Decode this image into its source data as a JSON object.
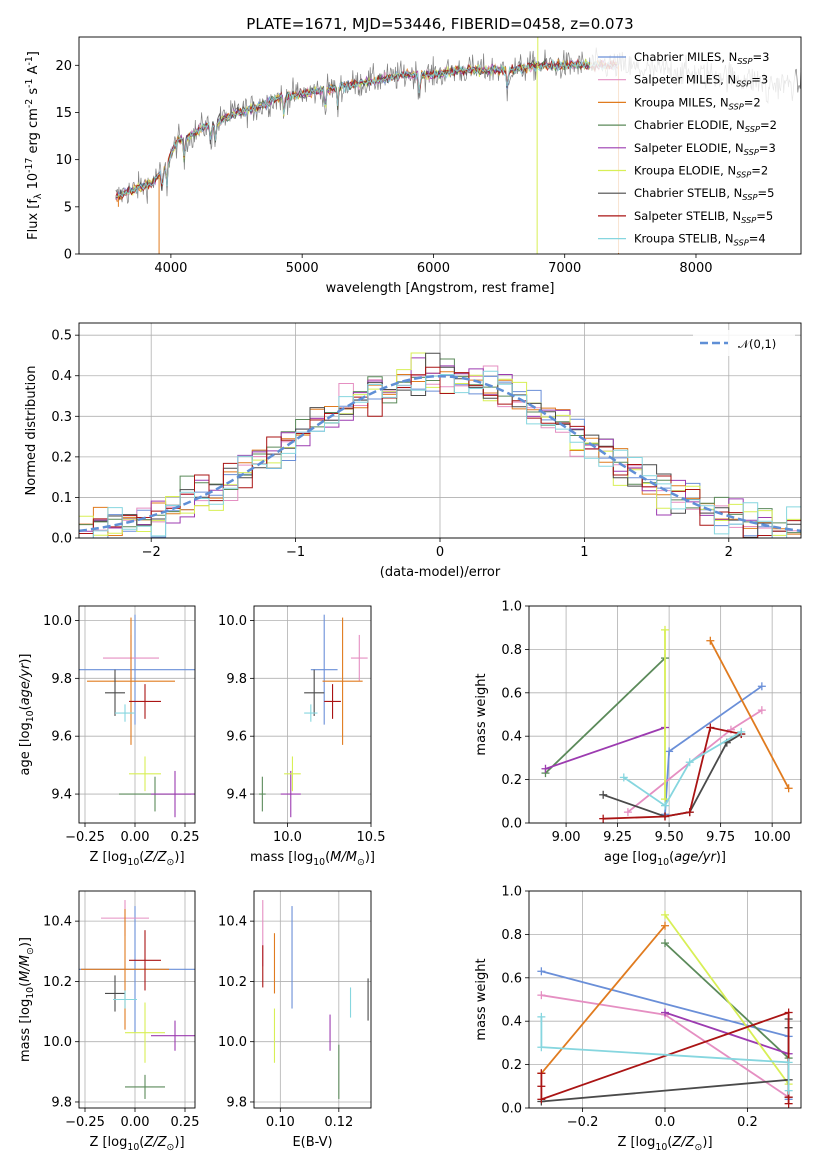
{
  "title": "PLATE=1671, MJD=53446, FIBERID=0458, z=0.073",
  "colors": {
    "Chabrier MILES": "#6a8fd8",
    "Salpeter MILES": "#e58fc2",
    "Kroupa MILES": "#e07b1f",
    "Chabrier ELODIE": "#5b8a5a",
    "Salpeter ELODIE": "#9c3bb0",
    "Kroupa ELODIE": "#d8ef56",
    "Chabrier STELIB": "#4a4a4a",
    "Salpeter STELIB": "#aa1414",
    "Kroupa STELIB": "#86d6df",
    "normal": "#5f8fd6",
    "data": "#808080"
  },
  "chart_data": [
    {
      "id": "spectrum",
      "type": "line",
      "xlabel": "wavelength [Angstrom, rest frame]",
      "ylabel": "Flux [f$_\\lambda 10^{-17}$ erg cm$^{-2}$ s$^{-1}$ A$^{-1}$]",
      "xlim": [
        3300,
        8800
      ],
      "ylim": [
        0,
        23
      ],
      "xticks": [
        4000,
        5000,
        6000,
        7000,
        8000
      ],
      "yticks": [
        0,
        5,
        10,
        15,
        20
      ],
      "legend_placement": "upper right",
      "continuum": {
        "x": [
          3580,
          3650,
          3750,
          3850,
          3950,
          4050,
          4150,
          4250,
          4350,
          4500,
          4650,
          4800,
          5000,
          5200,
          5400,
          5600,
          5800,
          6000,
          6200,
          6400,
          6600,
          6800,
          7000,
          7200,
          7400,
          7600,
          7800,
          8000,
          8200,
          8400,
          8600,
          8800
        ],
        "y": [
          6.0,
          6.5,
          7.0,
          7.5,
          9.0,
          12.0,
          12.5,
          13.5,
          14.0,
          15.0,
          15.5,
          16.5,
          17.0,
          17.5,
          18.0,
          18.5,
          19.0,
          19.0,
          19.5,
          19.5,
          19.5,
          20.0,
          20.0,
          20.0,
          20.0,
          19.5,
          19.5,
          19.0,
          19.0,
          18.5,
          18.0,
          18.0
        ]
      },
      "series": [
        {
          "name": "Chabrier MILES, N$_{SSP}$=3",
          "label_model": "Chabrier MILES",
          "label_n": "3"
        },
        {
          "name": "Salpeter MILES, N$_{SSP}$=3",
          "label_model": "Salpeter MILES",
          "label_n": "3"
        },
        {
          "name": "Kroupa MILES, N$_{SSP}$=2",
          "label_model": "Kroupa MILES",
          "label_n": "2"
        },
        {
          "name": "Chabrier ELODIE, N$_{SSP}$=2",
          "label_model": "Chabrier ELODIE",
          "label_n": "2"
        },
        {
          "name": "Salpeter ELODIE, N$_{SSP}$=3",
          "label_model": "Salpeter ELODIE",
          "label_n": "3"
        },
        {
          "name": "Kroupa ELODIE, N$_{SSP}$=2",
          "label_model": "Kroupa ELODIE",
          "label_n": "2"
        },
        {
          "name": "Chabrier STELIB, N$_{SSP}$=5",
          "label_model": "Chabrier STELIB",
          "label_n": "5"
        },
        {
          "name": "Salpeter STELIB, N$_{SSP}$=5",
          "label_model": "Salpeter STELIB",
          "label_n": "5"
        },
        {
          "name": "Kroupa STELIB, N$_{SSP}$=4",
          "label_model": "Kroupa STELIB",
          "label_n": "4"
        }
      ]
    },
    {
      "id": "residuals",
      "type": "line",
      "xlabel": "(data-model)/error",
      "ylabel": "Normed distribution",
      "xlim": [
        -2.5,
        2.5
      ],
      "ylim": [
        0,
        0.53
      ],
      "xticks": [
        -2,
        -1,
        0,
        1,
        2
      ],
      "yticks": [
        0.0,
        0.1,
        0.2,
        0.3,
        0.4,
        0.5
      ],
      "grid": true,
      "legend": {
        "label": "$\\mathcal{N}(0,1)$",
        "placement": "upper right"
      },
      "series": [
        {
          "name": "N(0,1)",
          "mean": 0,
          "sigma": 1,
          "style": "dashed"
        }
      ]
    },
    {
      "id": "age_vs_Z",
      "type": "scatter",
      "xlabel": "Z [log$_{10}$($Z/Z_\\odot$)]",
      "ylabel": "age  [log$_{10}$($age/yr$)]",
      "xlim": [
        -0.28,
        0.3
      ],
      "ylim": [
        9.3,
        10.05
      ],
      "xticks": [
        -0.25,
        0.0,
        0.25
      ],
      "yticks": [
        9.4,
        9.6,
        9.8,
        10.0
      ],
      "grid": true,
      "points": [
        {
          "model": "Chabrier MILES",
          "x": 0.0,
          "xerr": 0.3,
          "y": 9.83,
          "yerr": 0.19
        },
        {
          "model": "Salpeter MILES",
          "x": -0.02,
          "xerr": 0.14,
          "y": 9.87,
          "yerr": 0.08
        },
        {
          "model": "Kroupa MILES",
          "x": -0.02,
          "xerr": 0.22,
          "y": 9.79,
          "yerr": 0.22
        },
        {
          "model": "Chabrier ELODIE",
          "x": 0.1,
          "xerr": 0.18,
          "y": 9.4,
          "yerr": 0.06
        },
        {
          "model": "Salpeter ELODIE",
          "x": 0.2,
          "xerr": 0.12,
          "y": 9.4,
          "yerr": 0.08
        },
        {
          "model": "Kroupa ELODIE",
          "x": 0.05,
          "xerr": 0.08,
          "y": 9.47,
          "yerr": 0.06
        },
        {
          "model": "Chabrier STELIB",
          "x": -0.1,
          "xerr": 0.05,
          "y": 9.75,
          "yerr": 0.08
        },
        {
          "model": "Salpeter STELIB",
          "x": 0.05,
          "xerr": 0.08,
          "y": 9.72,
          "yerr": 0.06
        },
        {
          "model": "Kroupa STELIB",
          "x": -0.05,
          "xerr": 0.05,
          "y": 9.68,
          "yerr": 0.03
        }
      ]
    },
    {
      "id": "age_vs_mass",
      "type": "scatter",
      "xlabel": "mass [log$_{10}$($M/M_\\odot$)]",
      "xlim": [
        9.8,
        10.5
      ],
      "ylim": [
        9.3,
        10.05
      ],
      "xticks": [
        10.0,
        10.5
      ],
      "yticks": [
        9.4,
        9.6,
        9.8,
        10.0
      ],
      "grid": true,
      "points": [
        {
          "model": "Chabrier MILES",
          "x": 10.22,
          "xerr": 0.08,
          "y": 9.83,
          "yerr": 0.19
        },
        {
          "model": "Salpeter MILES",
          "x": 10.43,
          "xerr": 0.05,
          "y": 9.87,
          "yerr": 0.08
        },
        {
          "model": "Kroupa MILES",
          "x": 10.33,
          "xerr": 0.12,
          "y": 9.79,
          "yerr": 0.22
        },
        {
          "model": "Chabrier ELODIE",
          "x": 9.85,
          "xerr": 0.02,
          "y": 9.4,
          "yerr": 0.06
        },
        {
          "model": "Salpeter ELODIE",
          "x": 10.02,
          "xerr": 0.06,
          "y": 9.4,
          "yerr": 0.08
        },
        {
          "model": "Kroupa ELODIE",
          "x": 10.03,
          "xerr": 0.05,
          "y": 9.47,
          "yerr": 0.06
        },
        {
          "model": "Chabrier STELIB",
          "x": 10.16,
          "xerr": 0.06,
          "y": 9.75,
          "yerr": 0.08
        },
        {
          "model": "Salpeter STELIB",
          "x": 10.27,
          "xerr": 0.05,
          "y": 9.72,
          "yerr": 0.06
        },
        {
          "model": "Kroupa STELIB",
          "x": 10.14,
          "xerr": 0.04,
          "y": 9.68,
          "yerr": 0.03
        }
      ]
    },
    {
      "id": "weight_vs_age",
      "type": "line",
      "xlabel": "age  [log$_{10}$($age/yr$)]",
      "ylabel": "mass weight",
      "xlim": [
        8.82,
        10.14
      ],
      "ylim": [
        0,
        1.0
      ],
      "xticks": [
        9.0,
        9.25,
        9.5,
        9.75,
        10.0
      ],
      "yticks": [
        0.0,
        0.2,
        0.4,
        0.6,
        0.8,
        1.0
      ],
      "grid": true,
      "series": [
        {
          "model": "Chabrier MILES",
          "x": [
            9.48,
            9.5,
            9.95
          ],
          "y": [
            0.04,
            0.33,
            0.63
          ]
        },
        {
          "model": "Salpeter MILES",
          "x": [
            9.3,
            9.8,
            9.95
          ],
          "y": [
            0.05,
            0.43,
            0.52
          ]
        },
        {
          "model": "Kroupa MILES",
          "x": [
            9.7,
            10.08
          ],
          "y": [
            0.84,
            0.16
          ]
        },
        {
          "model": "Chabrier ELODIE",
          "x": [
            8.9,
            9.48
          ],
          "y": [
            0.23,
            0.76
          ]
        },
        {
          "model": "Salpeter ELODIE",
          "x": [
            8.9,
            9.48
          ],
          "y": [
            0.25,
            0.44
          ]
        },
        {
          "model": "Kroupa ELODIE",
          "x": [
            9.48,
            9.48
          ],
          "y": [
            0.11,
            0.89
          ]
        },
        {
          "model": "Chabrier STELIB",
          "x": [
            9.18,
            9.48,
            9.6,
            9.78,
            9.85
          ],
          "y": [
            0.13,
            0.03,
            0.05,
            0.37,
            0.41
          ]
        },
        {
          "model": "Salpeter STELIB",
          "x": [
            9.18,
            9.48,
            9.6,
            9.7,
            9.85
          ],
          "y": [
            0.02,
            0.03,
            0.05,
            0.44,
            0.41
          ]
        },
        {
          "model": "Kroupa STELIB",
          "x": [
            9.28,
            9.48,
            9.6,
            9.85
          ],
          "y": [
            0.21,
            0.08,
            0.28,
            0.42
          ]
        }
      ]
    },
    {
      "id": "mass_vs_Z",
      "type": "scatter",
      "xlabel": "Z [log$_{10}$($Z/Z_\\odot$)]",
      "ylabel": "mass [log$_{10}$($M/M_\\odot$)]",
      "xlim": [
        -0.28,
        0.3
      ],
      "ylim": [
        9.78,
        10.5
      ],
      "xticks": [
        -0.25,
        0.0,
        0.25
      ],
      "yticks": [
        9.8,
        10.0,
        10.2,
        10.4
      ],
      "grid": true,
      "points": [
        {
          "model": "Chabrier MILES",
          "x": 0.0,
          "xerr": 0.3,
          "y": 10.24,
          "yerr": 0.21
        },
        {
          "model": "Salpeter MILES",
          "x": -0.05,
          "xerr": 0.12,
          "y": 10.41,
          "yerr": 0.06
        },
        {
          "model": "Kroupa MILES",
          "x": -0.05,
          "xerr": 0.22,
          "y": 10.24,
          "yerr": 0.2
        },
        {
          "model": "Chabrier ELODIE",
          "x": 0.05,
          "xerr": 0.1,
          "y": 9.85,
          "yerr": 0.04
        },
        {
          "model": "Salpeter ELODIE",
          "x": 0.2,
          "xerr": 0.12,
          "y": 10.02,
          "yerr": 0.05
        },
        {
          "model": "Kroupa ELODIE",
          "x": 0.05,
          "xerr": 0.1,
          "y": 10.03,
          "yerr": 0.1
        },
        {
          "model": "Chabrier STELIB",
          "x": -0.1,
          "xerr": 0.05,
          "y": 10.16,
          "yerr": 0.06
        },
        {
          "model": "Salpeter STELIB",
          "x": 0.05,
          "xerr": 0.08,
          "y": 10.27,
          "yerr": 0.1
        },
        {
          "model": "Kroupa STELIB",
          "x": -0.05,
          "xerr": 0.06,
          "y": 10.14,
          "yerr": 0.03
        }
      ]
    },
    {
      "id": "mass_vs_ebv",
      "type": "scatter",
      "xlabel": "E(B-V)",
      "xlim": [
        0.091,
        0.131
      ],
      "ylim": [
        9.78,
        10.5
      ],
      "xticks": [
        0.1,
        0.12
      ],
      "yticks": [
        9.8,
        10.0,
        10.2,
        10.4
      ],
      "grid": true,
      "points": [
        {
          "model": "Chabrier MILES",
          "x": 0.104,
          "y": 10.28,
          "yerr": 0.17
        },
        {
          "model": "Salpeter MILES",
          "x": 0.094,
          "y": 10.36,
          "yerr": 0.11
        },
        {
          "model": "Kroupa MILES",
          "x": 0.098,
          "y": 10.26,
          "yerr": 0.1
        },
        {
          "model": "Chabrier ELODIE",
          "x": 0.12,
          "y": 9.9,
          "yerr": 0.09
        },
        {
          "model": "Salpeter ELODIE",
          "x": 0.117,
          "y": 10.03,
          "yerr": 0.06
        },
        {
          "model": "Kroupa ELODIE",
          "x": 0.098,
          "y": 10.02,
          "yerr": 0.09
        },
        {
          "model": "Chabrier STELIB",
          "x": 0.13,
          "y": 10.14,
          "yerr": 0.07
        },
        {
          "model": "Salpeter STELIB",
          "x": 0.094,
          "y": 10.25,
          "yerr": 0.07
        },
        {
          "model": "Kroupa STELIB",
          "x": 0.124,
          "y": 10.13,
          "yerr": 0.05
        }
      ]
    },
    {
      "id": "weight_vs_Z",
      "type": "line",
      "xlabel": "Z [log$_{10}$($Z/Z_\\odot$)]",
      "ylabel": "mass weight",
      "xlim": [
        -0.33,
        0.33
      ],
      "ylim": [
        0,
        1.0
      ],
      "xticks": [
        -0.2,
        0.0,
        0.2
      ],
      "yticks": [
        0.0,
        0.2,
        0.4,
        0.6,
        0.8,
        1.0
      ],
      "grid": true,
      "series": [
        {
          "model": "Chabrier MILES",
          "x": [
            -0.3,
            0.3,
            0.3
          ],
          "y": [
            0.63,
            0.33,
            0.04
          ]
        },
        {
          "model": "Salpeter MILES",
          "x": [
            -0.3,
            0.0,
            0.3
          ],
          "y": [
            0.52,
            0.43,
            0.05
          ]
        },
        {
          "model": "Kroupa MILES",
          "x": [
            -0.3,
            0.0
          ],
          "y": [
            0.16,
            0.84
          ]
        },
        {
          "model": "Chabrier ELODIE",
          "x": [
            0.0,
            0.3
          ],
          "y": [
            0.76,
            0.23
          ]
        },
        {
          "model": "Salpeter ELODIE",
          "x": [
            0.0,
            0.3
          ],
          "y": [
            0.44,
            0.25
          ]
        },
        {
          "model": "Kroupa ELODIE",
          "x": [
            0.0,
            0.3
          ],
          "y": [
            0.89,
            0.11
          ]
        },
        {
          "model": "Chabrier STELIB",
          "x": [
            -0.3,
            0.3,
            0.3,
            0.3,
            0.3
          ],
          "y": [
            0.03,
            0.13,
            0.05,
            0.37,
            0.41
          ]
        },
        {
          "model": "Salpeter STELIB",
          "x": [
            -0.3,
            -0.3,
            -0.3,
            0.3,
            0.3,
            0.3
          ],
          "y": [
            0.1,
            0.16,
            0.04,
            0.44,
            0.02,
            0.05
          ]
        },
        {
          "model": "Kroupa STELIB",
          "x": [
            -0.3,
            -0.3,
            0.3,
            0.3
          ],
          "y": [
            0.42,
            0.28,
            0.21,
            0.08
          ]
        }
      ]
    }
  ]
}
